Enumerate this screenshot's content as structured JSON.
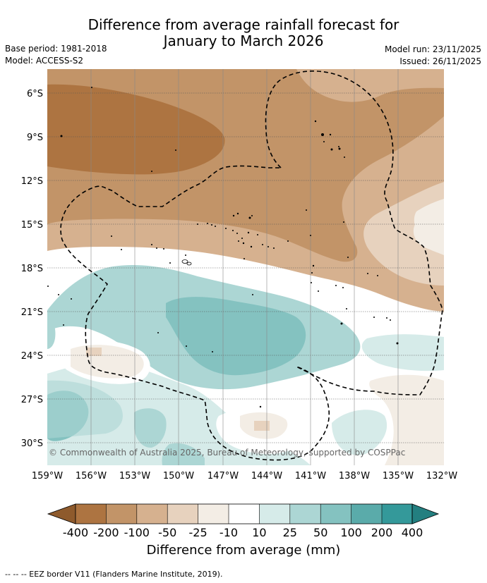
{
  "title": {
    "line1": "Difference from average rainfall forecast for",
    "line2": "January to March 2026"
  },
  "meta": {
    "base_period": "Base period: 1981-2018",
    "model": "Model: ACCESS-S2",
    "model_run": "Model run: 23/11/2025",
    "issued": "Issued: 26/11/2025"
  },
  "map": {
    "lat_labels": [
      "6°S",
      "9°S",
      "12°S",
      "15°S",
      "18°S",
      "21°S",
      "24°S",
      "27°S",
      "30°S"
    ],
    "lon_labels": [
      "159°W",
      "156°W",
      "153°W",
      "150°W",
      "147°W",
      "144°W",
      "141°W",
      "138°W",
      "135°W",
      "132°W"
    ],
    "copyright": "© Commonwealth of Australia 2025, Bureau of Meteorology, supported by COSPPac"
  },
  "colorbar": {
    "ticks": [
      "-400",
      "-200",
      "-100",
      "-50",
      "-25",
      "-10",
      "10",
      "25",
      "50",
      "100",
      "200",
      "400"
    ],
    "colors": [
      "#8e5a2c",
      "#ad7441",
      "#c29468",
      "#d6b18f",
      "#e7d2be",
      "#f3ede5",
      "#ffffff",
      "#d6ebe9",
      "#acd6d4",
      "#84c2c0",
      "#5aabaa",
      "#34999a",
      "#237f80"
    ],
    "label": "Difference from average (mm)"
  },
  "footer": "--  --  -- EEZ border V11 (Flanders Marine Institute, 2019).",
  "colors": {
    "dark_brown": "#ad7441",
    "mid_brown": "#c29468",
    "light_brown": "#d6b18f",
    "pale_brown": "#e7d2be",
    "cream": "#f3ede5",
    "pale_teal": "#d6ebe9",
    "light_teal": "#acd6d4",
    "mid_teal": "#84c2c0"
  }
}
